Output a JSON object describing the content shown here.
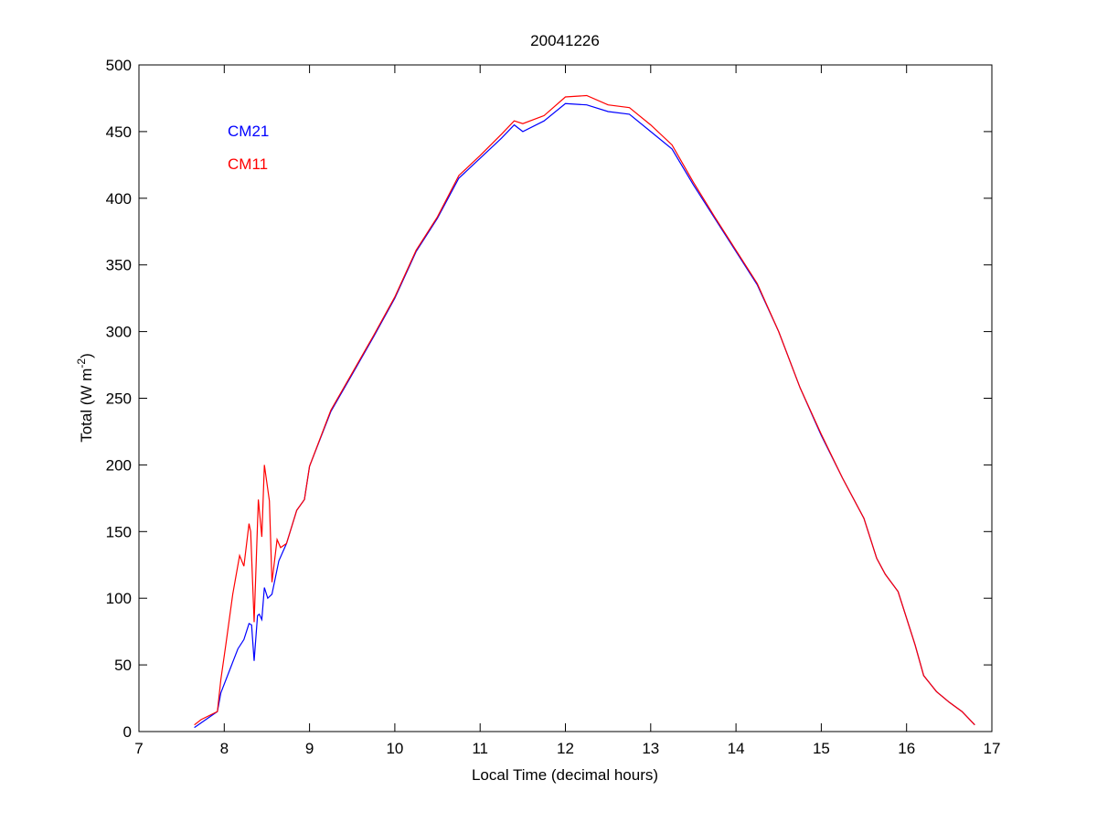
{
  "chart_data": {
    "type": "line",
    "title": "20041226",
    "xlabel": "Local Time (decimal hours)",
    "ylabel": "Total (W m",
    "ylabel_superscript": "-2",
    "ylabel_suffix": ")",
    "xlim": [
      7,
      17
    ],
    "ylim": [
      0,
      500
    ],
    "xticks": [
      7,
      8,
      9,
      10,
      11,
      12,
      13,
      14,
      15,
      16,
      17
    ],
    "yticks": [
      0,
      50,
      100,
      150,
      200,
      250,
      300,
      350,
      400,
      450,
      500
    ],
    "grid": false,
    "legend_placement": "top-left",
    "series": [
      {
        "name": "CM21",
        "color": "#0000ff",
        "x": [
          7.65,
          7.92,
          7.96,
          8.16,
          8.23,
          8.29,
          8.32,
          8.35,
          8.39,
          8.41,
          8.44,
          8.47,
          8.51,
          8.56,
          8.64,
          8.73,
          8.85,
          8.94,
          9.0,
          9.25,
          9.5,
          9.75,
          10,
          10.25,
          10.5,
          10.75,
          11,
          11.25,
          11.4,
          11.5,
          11.75,
          12,
          12.25,
          12.5,
          12.75,
          13,
          13.25,
          13.5,
          13.75,
          14,
          14.25,
          14.5,
          14.75,
          15,
          15.25,
          15.5,
          15.65,
          15.75,
          15.9,
          16.0,
          16.1,
          16.2,
          16.35,
          16.5,
          16.65,
          16.8
        ],
        "y": [
          3,
          15,
          29,
          62,
          69,
          81,
          80,
          53,
          87,
          88,
          84,
          108,
          100,
          103,
          128,
          141,
          166,
          174,
          199,
          240,
          268,
          296,
          325,
          360,
          385,
          415,
          430,
          445,
          455,
          450,
          458,
          471,
          470,
          465,
          463,
          450,
          437,
          410,
          385,
          360,
          335,
          300,
          258,
          222,
          190,
          160,
          130,
          118,
          105,
          85,
          65,
          42,
          30,
          22,
          15,
          5
        ]
      },
      {
        "name": "CM11",
        "color": "#ff0000",
        "x": [
          7.65,
          7.73,
          7.92,
          7.96,
          8.02,
          8.1,
          8.18,
          8.23,
          8.29,
          8.31,
          8.35,
          8.4,
          8.44,
          8.47,
          8.53,
          8.56,
          8.62,
          8.66,
          8.73,
          8.85,
          8.94,
          9.0,
          9.25,
          9.5,
          9.75,
          10,
          10.25,
          10.5,
          10.75,
          11,
          11.25,
          11.4,
          11.5,
          11.75,
          12,
          12.25,
          12.5,
          12.75,
          13,
          13.25,
          13.5,
          13.75,
          14,
          14.25,
          14.5,
          14.75,
          15,
          15.25,
          15.5,
          15.65,
          15.75,
          15.9,
          16.0,
          16.1,
          16.2,
          16.35,
          16.5,
          16.65,
          16.8
        ],
        "y": [
          5,
          9,
          15,
          39,
          66,
          103,
          132,
          124,
          156,
          150,
          82,
          174,
          146,
          200,
          173,
          112,
          144,
          138,
          141,
          166,
          174,
          199,
          241,
          269,
          297,
          326,
          361,
          386,
          417,
          432,
          448,
          458,
          456,
          462,
          476,
          477,
          470,
          468,
          455,
          440,
          412,
          386,
          361,
          336,
          300,
          258,
          223,
          190,
          160,
          130,
          118,
          105,
          85,
          65,
          42,
          30,
          22,
          15,
          5
        ]
      }
    ]
  }
}
